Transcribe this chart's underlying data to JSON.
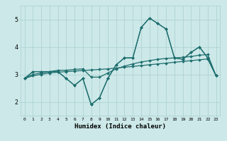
{
  "title": "",
  "xlabel": "Humidex (Indice chaleur)",
  "ylabel": "",
  "xlim": [
    -0.5,
    23.5
  ],
  "ylim": [
    1.5,
    5.5
  ],
  "xticks": [
    0,
    1,
    2,
    3,
    4,
    5,
    6,
    7,
    8,
    9,
    10,
    11,
    12,
    13,
    14,
    15,
    16,
    17,
    18,
    19,
    20,
    21,
    22,
    23
  ],
  "yticks": [
    2,
    3,
    4,
    5
  ],
  "bg_color": "#cce8e8",
  "line_color": "#1e6e6e",
  "grid_color": "#aacfcf",
  "line_width": 0.9,
  "marker": "D",
  "marker_size": 2.0,
  "series": [
    [
      2.85,
      3.1,
      3.1,
      3.1,
      3.1,
      2.85,
      2.6,
      2.85,
      1.9,
      2.15,
      2.85,
      3.35,
      3.6,
      3.6,
      4.7,
      5.05,
      4.85,
      4.65,
      3.6,
      3.55,
      3.8,
      4.0,
      3.6,
      2.95
    ],
    [
      2.85,
      3.1,
      3.1,
      3.1,
      3.1,
      2.85,
      2.6,
      2.85,
      1.9,
      2.15,
      2.85,
      3.35,
      3.6,
      3.6,
      4.7,
      5.05,
      4.85,
      4.65,
      3.6,
      3.55,
      3.8,
      4.0,
      3.6,
      2.95
    ],
    [
      2.85,
      3.0,
      3.05,
      3.1,
      3.15,
      3.15,
      3.18,
      3.2,
      2.9,
      2.9,
      3.05,
      3.2,
      3.3,
      3.38,
      3.45,
      3.5,
      3.55,
      3.58,
      3.6,
      3.62,
      3.65,
      3.7,
      3.72,
      2.95
    ],
    [
      2.85,
      2.95,
      3.0,
      3.05,
      3.08,
      3.1,
      3.12,
      3.14,
      3.16,
      3.18,
      3.2,
      3.23,
      3.26,
      3.29,
      3.32,
      3.35,
      3.38,
      3.41,
      3.44,
      3.47,
      3.5,
      3.53,
      3.56,
      2.95
    ]
  ]
}
